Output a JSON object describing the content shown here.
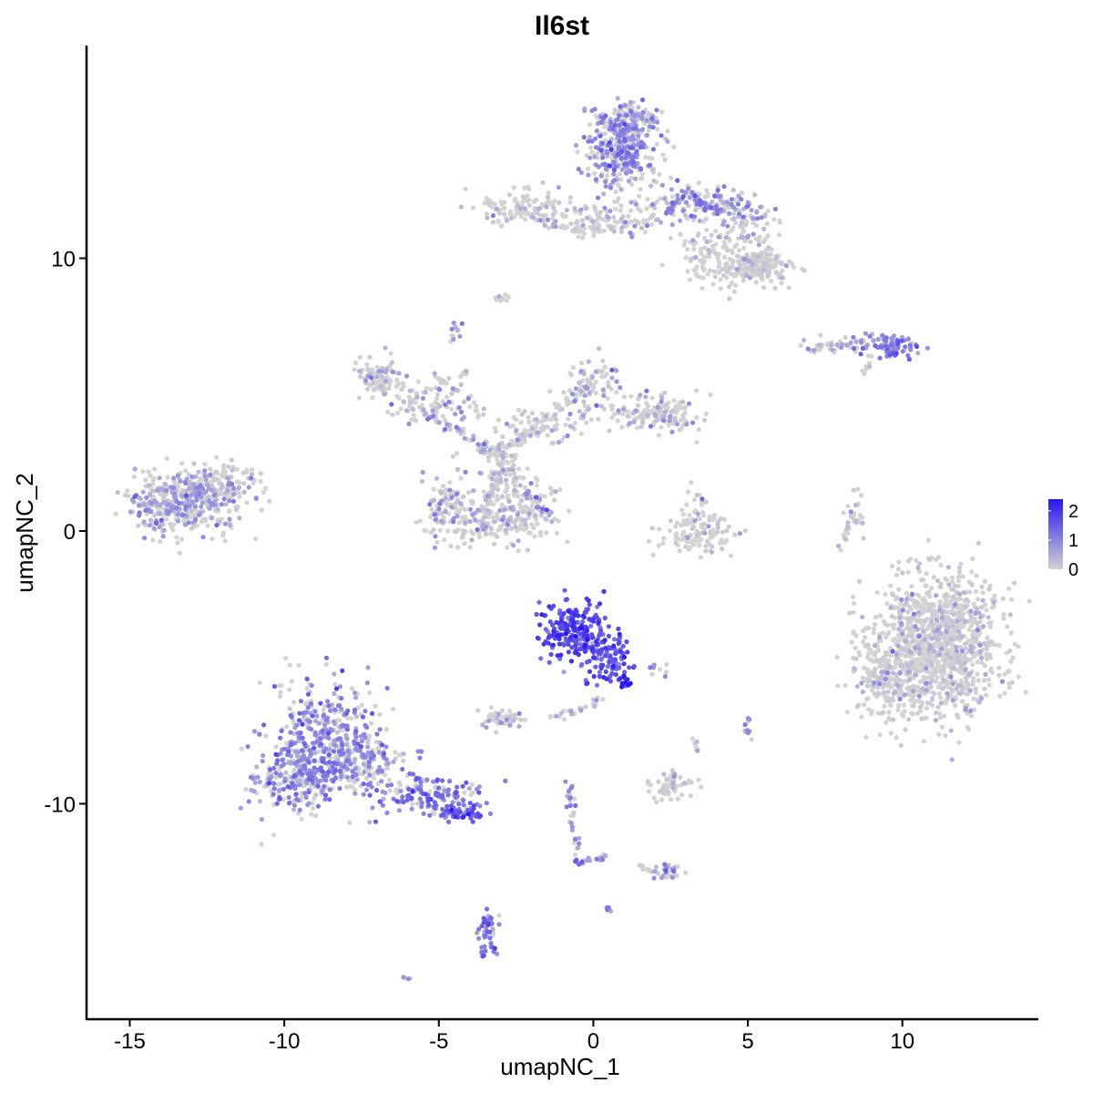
{
  "chart_data": {
    "type": "scatter",
    "title": "Il6st",
    "xlabel": "umapNC_1",
    "ylabel": "umapNC_2",
    "xlim": [
      -16.4,
      14.4
    ],
    "ylim": [
      -17.9,
      17.8
    ],
    "x_ticks": [
      -15,
      -10,
      -5,
      0,
      5,
      10
    ],
    "x_tick_labels": [
      "-15",
      "-10",
      "-5",
      "0",
      "5",
      "10"
    ],
    "y_ticks": [
      -10,
      0,
      10
    ],
    "y_tick_labels": [
      "-10",
      "0",
      "10"
    ],
    "color_scale": {
      "low_color": "#d3d3d3",
      "high_color": "#2a16f2",
      "min": 0,
      "max": 2.4,
      "legend_ticks": [
        0,
        1,
        2
      ],
      "legend_labels": [
        "0",
        "1",
        "2"
      ],
      "legend_position": "right"
    },
    "grid": false,
    "clusters": [
      {
        "x": -13.2,
        "y": 1.0,
        "sx": 0.9,
        "sy": 0.55,
        "n": 420,
        "expr": 0.6
      },
      {
        "x": -12.0,
        "y": 1.8,
        "sx": 0.6,
        "sy": 0.4,
        "n": 120,
        "expr": 0.3
      },
      {
        "x": -8.8,
        "y": -7.6,
        "sx": 0.9,
        "sy": 1.2,
        "n": 380,
        "expr": 0.9
      },
      {
        "x": -9.6,
        "y": -9.0,
        "sx": 0.7,
        "sy": 0.6,
        "n": 220,
        "expr": 0.9
      },
      {
        "x": -7.6,
        "y": -8.4,
        "sx": 0.7,
        "sy": 0.5,
        "n": 160,
        "expr": 0.75
      },
      {
        "x": -5.4,
        "y": -9.6,
        "sx": 0.9,
        "sy": 0.35,
        "n": 150,
        "expr": 1.1
      },
      {
        "x": -4.4,
        "y": -10.3,
        "sx": 0.4,
        "sy": 0.2,
        "n": 50,
        "expr": 1.4
      },
      {
        "x": -0.7,
        "y": -3.6,
        "sx": 0.55,
        "sy": 0.5,
        "n": 200,
        "expr": 1.7
      },
      {
        "x": 0.4,
        "y": -4.6,
        "sx": 0.45,
        "sy": 0.45,
        "n": 110,
        "expr": 1.5
      },
      {
        "x": 1.0,
        "y": -5.5,
        "sx": 0.15,
        "sy": 0.15,
        "n": 12,
        "expr": 2.3
      },
      {
        "x": 11.2,
        "y": -4.2,
        "sx": 1.0,
        "sy": 1.25,
        "n": 1100,
        "expr": 0.15
      },
      {
        "x": 9.5,
        "y": -5.4,
        "sx": 0.6,
        "sy": 0.8,
        "n": 200,
        "expr": 0.15
      },
      {
        "x": 0.9,
        "y": 14.0,
        "sx": 0.6,
        "sy": 0.7,
        "n": 320,
        "expr": 0.85
      },
      {
        "x": 1.2,
        "y": 15.0,
        "sx": 0.5,
        "sy": 0.35,
        "n": 120,
        "expr": 0.7
      },
      {
        "x": 3.4,
        "y": 12.0,
        "sx": 1.0,
        "sy": 0.35,
        "n": 140,
        "expr": 0.7
      },
      {
        "x": 5.0,
        "y": 11.5,
        "sx": 0.45,
        "sy": 0.45,
        "n": 70,
        "expr": 0.55
      },
      {
        "x": 5.3,
        "y": 9.7,
        "sx": 0.5,
        "sy": 0.3,
        "n": 180,
        "expr": 0.05
      },
      {
        "x": 4.0,
        "y": 10.0,
        "sx": 0.7,
        "sy": 0.6,
        "n": 140,
        "expr": 0.1
      },
      {
        "x": 0.8,
        "y": 11.4,
        "sx": 0.8,
        "sy": 0.3,
        "n": 90,
        "expr": 0.3
      },
      {
        "x": -2.2,
        "y": 11.8,
        "sx": 0.8,
        "sy": 0.3,
        "n": 120,
        "expr": 0.15
      },
      {
        "x": -0.5,
        "y": 11.1,
        "sx": 0.6,
        "sy": 0.15,
        "n": 40,
        "expr": 0.05
      },
      {
        "x": 9.6,
        "y": 6.8,
        "sx": 0.5,
        "sy": 0.2,
        "n": 90,
        "expr": 1.0
      },
      {
        "x": 7.8,
        "y": 6.8,
        "sx": 0.6,
        "sy": 0.15,
        "n": 45,
        "expr": 0.4
      },
      {
        "x": -6.8,
        "y": 5.6,
        "sx": 0.4,
        "sy": 0.35,
        "n": 90,
        "expr": 0.3
      },
      {
        "x": -5.5,
        "y": 4.6,
        "sx": 0.6,
        "sy": 0.4,
        "n": 70,
        "expr": 0.3
      },
      {
        "x": -4.6,
        "y": 0.8,
        "sx": 0.5,
        "sy": 0.6,
        "n": 110,
        "expr": 0.45
      },
      {
        "x": -2.4,
        "y": 0.8,
        "sx": 0.55,
        "sy": 0.6,
        "n": 130,
        "expr": 0.3
      },
      {
        "x": -3.5,
        "y": 0.3,
        "sx": 0.8,
        "sy": 0.4,
        "n": 90,
        "expr": 0.2
      },
      {
        "x": -3.0,
        "y": 2.5,
        "sx": 0.4,
        "sy": 0.6,
        "n": 80,
        "expr": 0.2
      },
      {
        "x": -1.6,
        "y": 3.8,
        "sx": 0.8,
        "sy": 0.3,
        "n": 70,
        "expr": 0.25
      },
      {
        "x": 2.0,
        "y": 4.3,
        "sx": 0.9,
        "sy": 0.35,
        "n": 150,
        "expr": 0.3
      },
      {
        "x": 0.0,
        "y": 5.3,
        "sx": 0.4,
        "sy": 0.5,
        "n": 70,
        "expr": 0.4
      },
      {
        "x": 3.3,
        "y": -0.2,
        "sx": 0.7,
        "sy": 0.35,
        "n": 100,
        "expr": 0.05
      },
      {
        "x": 3.3,
        "y": 0.7,
        "sx": 0.35,
        "sy": 0.4,
        "n": 30,
        "expr": 0.2
      },
      {
        "x": -2.9,
        "y": -6.9,
        "sx": 0.3,
        "sy": 0.2,
        "n": 45,
        "expr": 0.5
      },
      {
        "x": 2.5,
        "y": -9.4,
        "sx": 0.35,
        "sy": 0.25,
        "n": 50,
        "expr": 0.15
      },
      {
        "x": -3.4,
        "y": -14.8,
        "sx": 0.15,
        "sy": 0.45,
        "n": 50,
        "expr": 1.1
      },
      {
        "x": 2.5,
        "y": -12.5,
        "sx": 0.25,
        "sy": 0.15,
        "n": 25,
        "expr": 0.6
      },
      {
        "x": 5.0,
        "y": -7.3,
        "sx": 0.08,
        "sy": 0.2,
        "n": 10,
        "expr": 0.8
      },
      {
        "x": 8.5,
        "y": 0.5,
        "sx": 0.2,
        "sy": 0.4,
        "n": 20,
        "expr": 0.3
      },
      {
        "x": -4.5,
        "y": 7.3,
        "sx": 0.1,
        "sy": 0.2,
        "n": 12,
        "expr": 0.6
      },
      {
        "x": -3.0,
        "y": 8.5,
        "sx": 0.15,
        "sy": 0.08,
        "n": 10,
        "expr": 0.1
      },
      {
        "x": 0.5,
        "y": -13.8,
        "sx": 0.08,
        "sy": 0.08,
        "n": 4,
        "expr": 1.3
      },
      {
        "x": -6.1,
        "y": -16.4,
        "sx": 0.1,
        "sy": 0.06,
        "n": 4,
        "expr": 1.0
      },
      {
        "x": 2.0,
        "y": -5.1,
        "sx": 0.25,
        "sy": 0.1,
        "n": 8,
        "expr": 0.6
      }
    ],
    "segments": [
      {
        "x1": -5.5,
        "y1": 4.3,
        "x2": -3.0,
        "y2": 2.8,
        "n": 50,
        "spread": 0.2,
        "expr": 0.5
      },
      {
        "x1": -3.0,
        "y1": 2.8,
        "x2": 0.0,
        "y2": 5.5,
        "n": 60,
        "spread": 0.22,
        "expr": 0.3
      },
      {
        "x1": -3.0,
        "y1": 2.5,
        "x2": -3.6,
        "y2": 0.0,
        "n": 40,
        "spread": 0.2,
        "expr": 0.3
      },
      {
        "x1": -2.3,
        "y1": 1.5,
        "x2": -1.4,
        "y2": 0.6,
        "n": 20,
        "spread": 0.12,
        "expr": 0.4
      },
      {
        "x1": 0.3,
        "y1": -6.2,
        "x2": -1.5,
        "y2": -6.9,
        "n": 25,
        "spread": 0.15,
        "expr": 0.4
      },
      {
        "x1": -0.8,
        "y1": -9.2,
        "x2": -0.5,
        "y2": -12.2,
        "n": 35,
        "spread": 0.15,
        "expr": 0.8
      },
      {
        "x1": -0.5,
        "y1": -12.2,
        "x2": 0.5,
        "y2": -11.9,
        "n": 20,
        "spread": 0.12,
        "expr": 0.7
      },
      {
        "x1": 1.5,
        "y1": -12.3,
        "x2": 2.5,
        "y2": -12.7,
        "n": 15,
        "spread": 0.12,
        "expr": 0.3
      },
      {
        "x1": -5.2,
        "y1": 5.8,
        "x2": -3.5,
        "y2": 4.2,
        "n": 30,
        "spread": 0.2,
        "expr": 0.4
      },
      {
        "x1": -4.2,
        "y1": 6.0,
        "x2": -4.5,
        "y2": 2.0,
        "n": 20,
        "spread": 0.15,
        "expr": 0.4
      },
      {
        "x1": 8.6,
        "y1": 1.2,
        "x2": 8.0,
        "y2": -0.6,
        "n": 20,
        "spread": 0.1,
        "expr": 0.3
      },
      {
        "x1": 3.2,
        "y1": 12.3,
        "x2": 4.2,
        "y2": 11.6,
        "n": 25,
        "spread": 0.15,
        "expr": 1.1
      },
      {
        "x1": 2.6,
        "y1": -8.6,
        "x2": 2.6,
        "y2": -9.8,
        "n": 12,
        "spread": 0.1,
        "expr": 0.4
      },
      {
        "x1": 3.2,
        "y1": -7.6,
        "x2": 3.4,
        "y2": -8.1,
        "n": 8,
        "spread": 0.08,
        "expr": 0.3
      },
      {
        "x1": 9.0,
        "y1": 6.2,
        "x2": 8.7,
        "y2": 5.8,
        "n": 8,
        "spread": 0.08,
        "expr": 0.2
      },
      {
        "x1": -1.8,
        "y1": 0.9,
        "x2": -1.3,
        "y2": 0.6,
        "n": 8,
        "spread": 0.08,
        "expr": 0.8
      }
    ]
  }
}
